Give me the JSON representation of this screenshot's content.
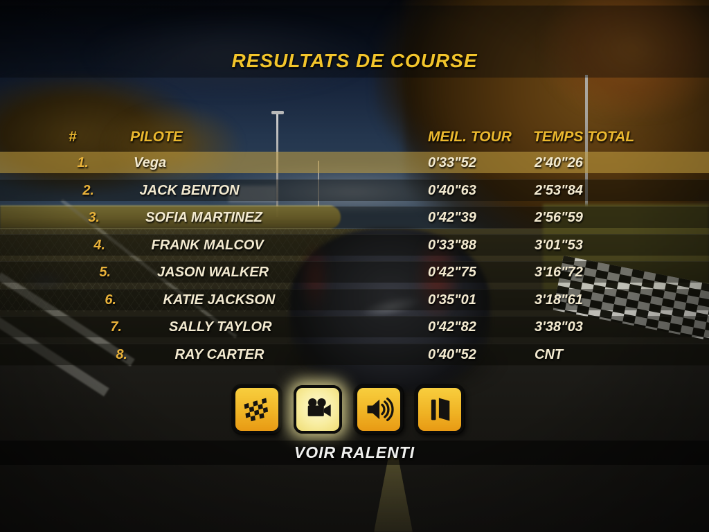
{
  "title": "RESULTATS DE COURSE",
  "table": {
    "headers": {
      "rank": "#",
      "pilot": "PILOTE",
      "best_lap": "MEIL. TOUR",
      "total_time": "TEMPS TOTAL"
    },
    "rows": [
      {
        "rank": "1.",
        "pilot": "Vega",
        "best_lap": "0'33\"52",
        "total_time": "2'40\"26",
        "highlight": true
      },
      {
        "rank": "2.",
        "pilot": "JACK BENTON",
        "best_lap": "0'40\"63",
        "total_time": "2'53\"84",
        "highlight": false
      },
      {
        "rank": "3.",
        "pilot": "SOFIA MARTINEZ",
        "best_lap": "0'42\"39",
        "total_time": "2'56\"59",
        "highlight": false
      },
      {
        "rank": "4.",
        "pilot": "FRANK MALCOV",
        "best_lap": "0'33\"88",
        "total_time": "3'01\"53",
        "highlight": false
      },
      {
        "rank": "5.",
        "pilot": "JASON WALKER",
        "best_lap": "0'42\"75",
        "total_time": "3'16\"72",
        "highlight": false
      },
      {
        "rank": "6.",
        "pilot": "KATIE JACKSON",
        "best_lap": "0'35\"01",
        "total_time": "3'18\"61",
        "highlight": false
      },
      {
        "rank": "7.",
        "pilot": "SALLY TAYLOR",
        "best_lap": "0'42\"82",
        "total_time": "3'38\"03",
        "highlight": false
      },
      {
        "rank": "8.",
        "pilot": "RAY CARTER",
        "best_lap": "0'40\"52",
        "total_time": "CNT",
        "highlight": false
      }
    ]
  },
  "buttons": [
    {
      "id": "results-flag-button",
      "icon": "checkered-flag-icon",
      "selected": false
    },
    {
      "id": "replay-camera-button",
      "icon": "camera-icon",
      "selected": true
    },
    {
      "id": "sound-button",
      "icon": "speaker-icon",
      "selected": false
    },
    {
      "id": "exit-button",
      "icon": "door-exit-icon",
      "selected": false
    }
  ],
  "action_label": "VOIR RALENTI",
  "colors": {
    "title_yellow": "#f3c52b",
    "header_yellow": "#ecb92f",
    "rank_gold": "#e9b23a",
    "text_cream": "#f3ead0",
    "button_top": "#f8ce3e",
    "button_bottom": "#e89a14",
    "selected_glow": "#fdf9d2",
    "highlight_row": "rgba(198,163,66,0.55)"
  }
}
